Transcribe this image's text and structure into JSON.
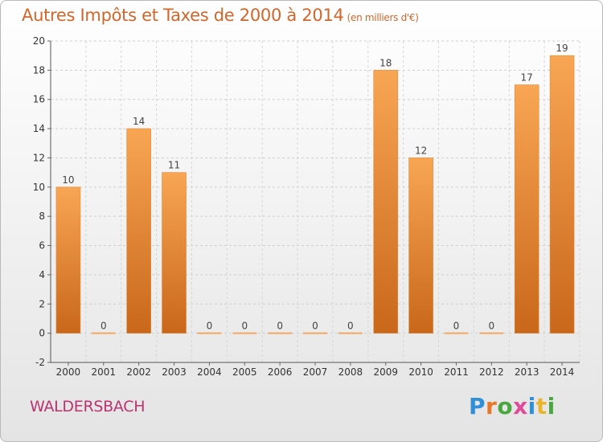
{
  "header": {
    "title": "Autres Impôts et Taxes de 2000 à 2014",
    "subtitle": "(en milliers d'€)"
  },
  "footer": {
    "place": "WALDERSBACH",
    "logo": "Proxiti"
  },
  "colors": {
    "bar_top": "#f8a654",
    "bar_bottom": "#c9671a",
    "title": "#d2662a",
    "place": "#bb3470",
    "logo_letters": [
      "#2f8fd8",
      "#e8762b",
      "#4aa63f",
      "#e04a9a",
      "#2f8fd8",
      "#e8b52b",
      "#4aa63f"
    ]
  },
  "chart_data": {
    "type": "bar",
    "categories": [
      "2000",
      "2001",
      "2002",
      "2003",
      "2004",
      "2005",
      "2006",
      "2007",
      "2008",
      "2009",
      "2010",
      "2011",
      "2012",
      "2013",
      "2014"
    ],
    "values": [
      10,
      0,
      14,
      11,
      0,
      0,
      0,
      0,
      0,
      18,
      12,
      0,
      0,
      17,
      19
    ],
    "value_labels": [
      "10",
      "0",
      "14",
      "11",
      "0",
      "0",
      "0",
      "0",
      "0",
      "18",
      "12",
      "0",
      "0",
      "17",
      "19"
    ],
    "title": "Autres Impôts et Taxes de 2000 à 2014",
    "subtitle": "(en milliers d'€)",
    "xlabel": "",
    "ylabel": "",
    "ylim": [
      -2,
      20
    ],
    "yticks": [
      "-2",
      "0",
      "2",
      "4",
      "6",
      "8",
      "10",
      "12",
      "14",
      "16",
      "18",
      "20"
    ],
    "grid": true
  }
}
